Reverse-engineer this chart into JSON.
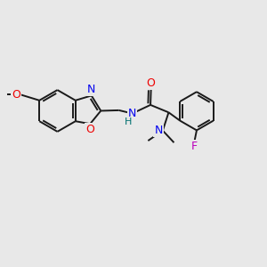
{
  "background_color": "#e8e8e8",
  "bond_color": "#1a1a1a",
  "bond_width": 1.4,
  "atom_colors": {
    "C": "#1a1a1a",
    "N": "#0000ee",
    "O": "#ee0000",
    "F": "#bb00bb",
    "H": "#007070"
  },
  "font_size": 8.5,
  "xlim": [
    0,
    10
  ],
  "ylim": [
    0,
    10
  ],
  "figsize": [
    3.0,
    3.0
  ],
  "dpi": 100
}
